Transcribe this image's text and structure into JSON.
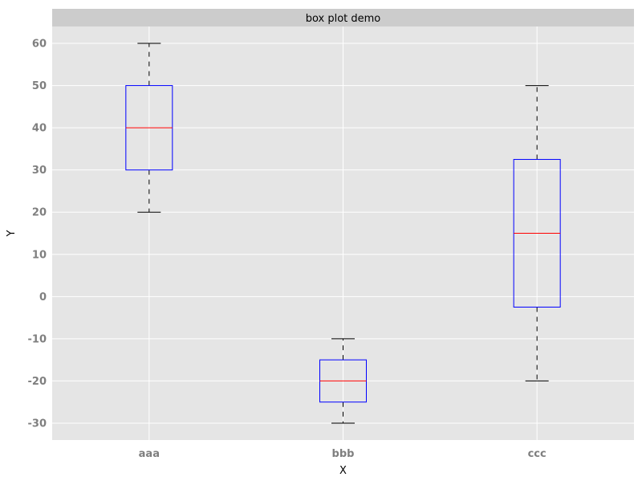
{
  "chart_data": {
    "type": "box",
    "title": "box plot demo",
    "xlabel": "X",
    "ylabel": "Y",
    "categories": [
      "aaa",
      "bbb",
      "ccc"
    ],
    "boxes": [
      {
        "category": "aaa",
        "whisker_low": 20,
        "q1": 30,
        "median": 40,
        "q3": 50,
        "whisker_high": 60
      },
      {
        "category": "bbb",
        "whisker_low": -30,
        "q1": -25,
        "median": -20,
        "q3": -15,
        "whisker_high": -10
      },
      {
        "category": "ccc",
        "whisker_low": -20,
        "q1": -2.5,
        "median": 15,
        "q3": 32.5,
        "whisker_high": 50
      }
    ],
    "ylim": [
      -34,
      64
    ],
    "yticks": [
      -30,
      -20,
      -10,
      0,
      10,
      20,
      30,
      40,
      50,
      60
    ],
    "grid": true,
    "legend": "none",
    "colors": {
      "background": "#e5e5e5",
      "grid": "#ffffff",
      "title_strip": "#cccccc",
      "box": "#0000ff",
      "median": "#ff0000",
      "whisker": "#000000",
      "tick_label": "#7f7f7f"
    }
  }
}
